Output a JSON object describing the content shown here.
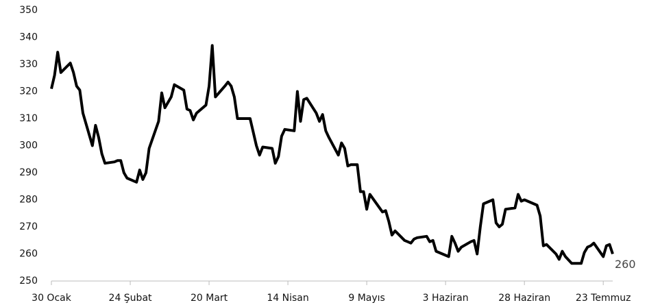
{
  "chart_data": {
    "type": "line",
    "x": [
      0,
      1,
      2,
      3,
      6,
      7,
      8,
      9,
      10,
      13,
      14,
      15,
      16,
      17,
      20,
      21,
      22,
      23,
      24,
      27,
      28,
      29,
      30,
      31,
      34,
      35,
      36,
      38,
      39,
      42,
      43,
      44,
      45,
      46,
      49,
      50,
      51,
      52,
      55,
      56,
      57,
      58,
      59,
      62,
      63,
      64,
      65,
      66,
      67,
      70,
      71,
      72,
      73,
      74,
      77,
      78,
      79,
      80,
      81,
      84,
      85,
      86,
      87,
      88,
      91,
      92,
      93,
      94,
      95,
      97,
      98,
      99,
      100,
      101,
      105,
      106,
      107,
      108,
      109,
      112,
      113,
      114,
      115,
      116,
      119,
      120,
      121,
      122,
      126,
      127,
      128,
      129,
      130,
      133,
      134,
      135,
      136,
      137,
      140,
      141,
      142,
      143,
      144,
      147,
      148,
      149,
      150,
      154,
      155,
      156,
      157,
      160,
      161,
      162,
      163,
      165,
      168,
      169,
      170,
      171,
      172,
      175,
      176,
      177,
      178
    ],
    "series": [
      {
        "name": null,
        "color": "#000000",
        "values": [
          321,
          326,
          334.5,
          327,
          330.5,
          327,
          322,
          320.5,
          312,
          300,
          307.5,
          303,
          297,
          293.5,
          294,
          294.5,
          294.5,
          290,
          288,
          286.5,
          291,
          287.5,
          290,
          299,
          309,
          319.5,
          314,
          318,
          322.5,
          320.5,
          313.5,
          313,
          309.5,
          312,
          315,
          322,
          337,
          318,
          322,
          323.5,
          322,
          318,
          310,
          310,
          310,
          305,
          300,
          296.5,
          299.5,
          299,
          293.5,
          296,
          303.5,
          306,
          305.5,
          320,
          309,
          317,
          317.5,
          312,
          309,
          311.5,
          305.5,
          303,
          296.5,
          301,
          299,
          292.5,
          293,
          293,
          283,
          283,
          276.5,
          282,
          275.5,
          276,
          272,
          267,
          268.5,
          265,
          264.5,
          264,
          265.5,
          266,
          266.5,
          264.5,
          265,
          261,
          259,
          266.5,
          264,
          261,
          262.5,
          264.5,
          265,
          260,
          270,
          278.5,
          280,
          271.5,
          270,
          271,
          276.5,
          277,
          282,
          279.5,
          280,
          278,
          274,
          263,
          263.5,
          260,
          258,
          261,
          259,
          256.5,
          256.5,
          260.5,
          262.5,
          263,
          264,
          259,
          263,
          263.5,
          260
        ]
      }
    ],
    "xlim": [
      0,
      178
    ],
    "xticks": [
      {
        "value": 0,
        "label": "30 Ocak"
      },
      {
        "value": 25,
        "label": "24 Şubat"
      },
      {
        "value": 50,
        "label": "20 Mart"
      },
      {
        "value": 75,
        "label": "14 Nisan"
      },
      {
        "value": 100,
        "label": "9 Mayıs"
      },
      {
        "value": 125,
        "label": "3 Haziran"
      },
      {
        "value": 150,
        "label": "28 Haziran"
      },
      {
        "value": 175,
        "label": "23 Temmuz"
      }
    ],
    "ylim": [
      250,
      350
    ],
    "yticks": [
      250,
      260,
      270,
      280,
      290,
      300,
      310,
      320,
      330,
      340,
      350
    ]
  }
}
